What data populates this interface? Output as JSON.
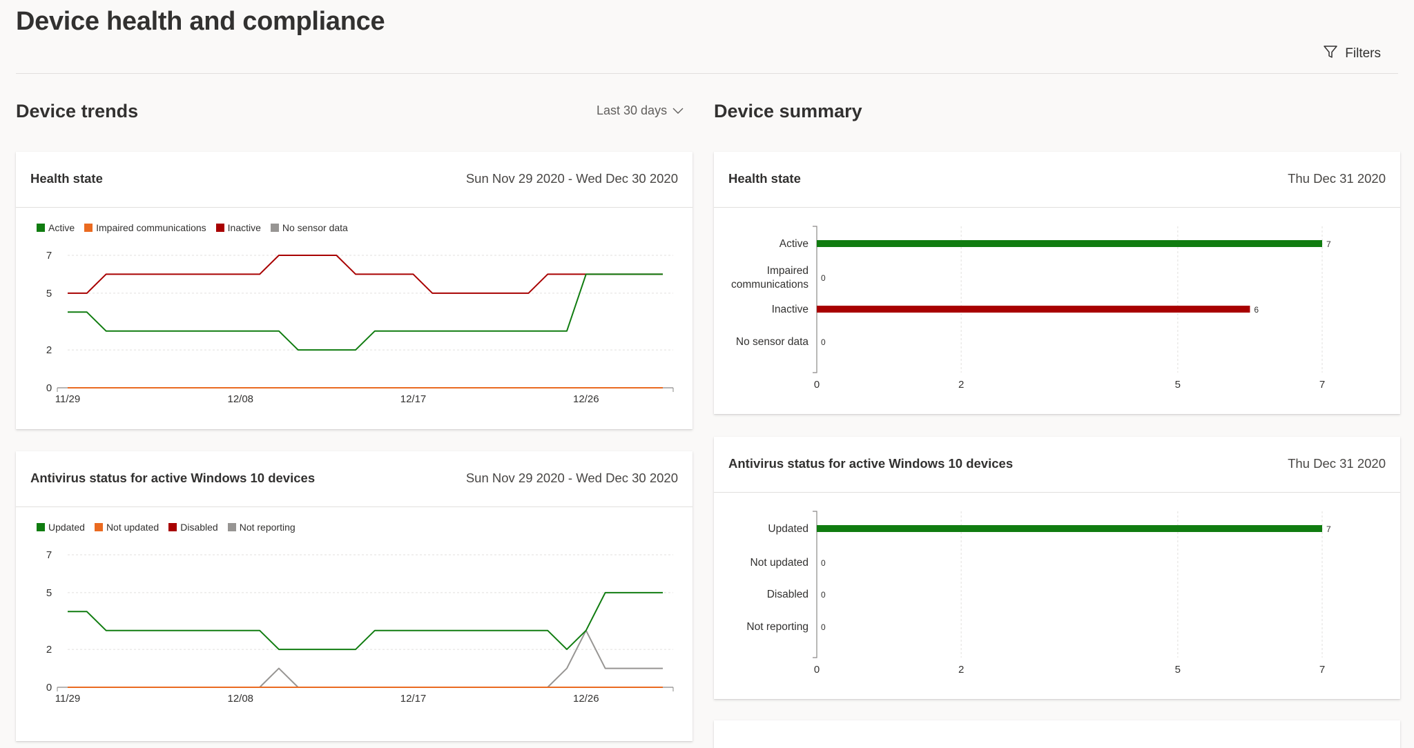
{
  "page": {
    "title": "Device health and compliance",
    "filters_label": "Filters"
  },
  "trends": {
    "title": "Device trends",
    "range_label": "Last 30 days",
    "cards": [
      {
        "title": "Health state",
        "date": "Sun Nov 29 2020 - Wed Dec 30 2020",
        "legend": [
          {
            "label": "Active",
            "color": "#107c10"
          },
          {
            "label": "Impaired communications",
            "color": "#ea6a20"
          },
          {
            "label": "Inactive",
            "color": "#a80000"
          },
          {
            "label": "No sensor data",
            "color": "#979593"
          }
        ]
      },
      {
        "title": "Antivirus status for active Windows 10 devices",
        "date": "Sun Nov 29 2020 - Wed Dec 30 2020",
        "legend": [
          {
            "label": "Updated",
            "color": "#107c10"
          },
          {
            "label": "Not updated",
            "color": "#ea6a20"
          },
          {
            "label": "Disabled",
            "color": "#a80000"
          },
          {
            "label": "Not reporting",
            "color": "#979593"
          }
        ]
      }
    ]
  },
  "summary": {
    "title": "Device summary",
    "cards": [
      {
        "title": "Health state",
        "date": "Thu Dec 31 2020"
      },
      {
        "title": "Antivirus status for active Windows 10 devices",
        "date": "Thu Dec 31 2020"
      }
    ]
  },
  "chart_data": [
    {
      "type": "line",
      "title": "Health state",
      "x": [
        "11/29",
        "11/30",
        "12/01",
        "12/02",
        "12/03",
        "12/04",
        "12/05",
        "12/06",
        "12/07",
        "12/08",
        "12/09",
        "12/10",
        "12/11",
        "12/12",
        "12/13",
        "12/14",
        "12/15",
        "12/16",
        "12/17",
        "12/18",
        "12/19",
        "12/20",
        "12/21",
        "12/22",
        "12/23",
        "12/24",
        "12/25",
        "12/26",
        "12/27",
        "12/28",
        "12/29",
        "12/30"
      ],
      "x_tick_labels": [
        "11/29",
        "12/08",
        "12/17",
        "12/26"
      ],
      "y_ticks": [
        0,
        2,
        5,
        7
      ],
      "ylim": [
        0,
        7
      ],
      "series": [
        {
          "name": "Active",
          "color": "#107c10",
          "values": [
            4,
            4,
            3,
            3,
            3,
            3,
            3,
            3,
            3,
            3,
            3,
            3,
            2,
            2,
            2,
            2,
            3,
            3,
            3,
            3,
            3,
            3,
            3,
            3,
            3,
            3,
            3,
            6,
            6,
            6,
            6,
            6
          ]
        },
        {
          "name": "Impaired communications",
          "color": "#ea6a20",
          "values": [
            0,
            0,
            0,
            0,
            0,
            0,
            0,
            0,
            0,
            0,
            0,
            0,
            0,
            0,
            0,
            0,
            0,
            0,
            0,
            0,
            0,
            0,
            0,
            0,
            0,
            0,
            0,
            0,
            0,
            0,
            0,
            0
          ]
        },
        {
          "name": "Inactive",
          "color": "#a80000",
          "values": [
            5,
            5,
            6,
            6,
            6,
            6,
            6,
            6,
            6,
            6,
            6,
            7,
            7,
            7,
            7,
            6,
            6,
            6,
            6,
            5,
            5,
            5,
            5,
            5,
            5,
            6,
            6,
            6,
            6,
            6,
            6,
            6
          ]
        },
        {
          "name": "No sensor data",
          "color": "#979593",
          "values": [
            0,
            0,
            0,
            0,
            0,
            0,
            0,
            0,
            0,
            0,
            0,
            0,
            0,
            0,
            0,
            0,
            0,
            0,
            0,
            0,
            0,
            0,
            0,
            0,
            0,
            0,
            0,
            0,
            0,
            0,
            0,
            0
          ]
        }
      ],
      "grid": true,
      "legend_position": "top-left"
    },
    {
      "type": "line",
      "title": "Antivirus status for active Windows 10 devices",
      "x": [
        "11/29",
        "11/30",
        "12/01",
        "12/02",
        "12/03",
        "12/04",
        "12/05",
        "12/06",
        "12/07",
        "12/08",
        "12/09",
        "12/10",
        "12/11",
        "12/12",
        "12/13",
        "12/14",
        "12/15",
        "12/16",
        "12/17",
        "12/18",
        "12/19",
        "12/20",
        "12/21",
        "12/22",
        "12/23",
        "12/24",
        "12/25",
        "12/26",
        "12/27",
        "12/28",
        "12/29",
        "12/30"
      ],
      "x_tick_labels": [
        "11/29",
        "12/08",
        "12/17",
        "12/26"
      ],
      "y_ticks": [
        0,
        2,
        5,
        7
      ],
      "ylim": [
        0,
        7
      ],
      "series": [
        {
          "name": "Updated",
          "color": "#107c10",
          "values": [
            4,
            4,
            3,
            3,
            3,
            3,
            3,
            3,
            3,
            3,
            3,
            2,
            2,
            2,
            2,
            2,
            3,
            3,
            3,
            3,
            3,
            3,
            3,
            3,
            3,
            3,
            2,
            3,
            5,
            5,
            5,
            5
          ]
        },
        {
          "name": "Not updated",
          "color": "#ea6a20",
          "values": [
            0,
            0,
            0,
            0,
            0,
            0,
            0,
            0,
            0,
            0,
            0,
            0,
            0,
            0,
            0,
            0,
            0,
            0,
            0,
            0,
            0,
            0,
            0,
            0,
            0,
            0,
            0,
            0,
            0,
            0,
            0,
            0
          ]
        },
        {
          "name": "Disabled",
          "color": "#a80000",
          "values": [
            0,
            0,
            0,
            0,
            0,
            0,
            0,
            0,
            0,
            0,
            0,
            0,
            0,
            0,
            0,
            0,
            0,
            0,
            0,
            0,
            0,
            0,
            0,
            0,
            0,
            0,
            0,
            0,
            0,
            0,
            0,
            0
          ]
        },
        {
          "name": "Not reporting",
          "color": "#979593",
          "values": [
            0,
            0,
            0,
            0,
            0,
            0,
            0,
            0,
            0,
            0,
            0,
            1,
            0,
            0,
            0,
            0,
            0,
            0,
            0,
            0,
            0,
            0,
            0,
            0,
            0,
            0,
            1,
            3,
            1,
            1,
            1,
            1
          ]
        }
      ],
      "grid": true,
      "legend_position": "top-left"
    },
    {
      "type": "bar",
      "orientation": "horizontal",
      "title": "Health state",
      "categories": [
        "Active",
        "Impaired communications",
        "Inactive",
        "No sensor data"
      ],
      "category_lines": [
        [
          "Active"
        ],
        [
          "Impaired",
          "communications"
        ],
        [
          "Inactive"
        ],
        [
          "No sensor data"
        ]
      ],
      "values": [
        7,
        0,
        6,
        0
      ],
      "colors": [
        "#107c10",
        "#ea6a20",
        "#a80000",
        "#979593"
      ],
      "x_ticks": [
        0,
        2,
        5,
        7
      ],
      "xlim": [
        0,
        7
      ],
      "grid": true
    },
    {
      "type": "bar",
      "orientation": "horizontal",
      "title": "Antivirus status for active Windows 10 devices",
      "categories": [
        "Updated",
        "Not updated",
        "Disabled",
        "Not reporting"
      ],
      "category_lines": [
        [
          "Updated"
        ],
        [
          "Not updated"
        ],
        [
          "Disabled"
        ],
        [
          "Not reporting"
        ]
      ],
      "values": [
        7,
        0,
        0,
        0
      ],
      "colors": [
        "#107c10",
        "#ea6a20",
        "#a80000",
        "#979593"
      ],
      "x_ticks": [
        0,
        2,
        5,
        7
      ],
      "xlim": [
        0,
        7
      ],
      "grid": true
    }
  ]
}
